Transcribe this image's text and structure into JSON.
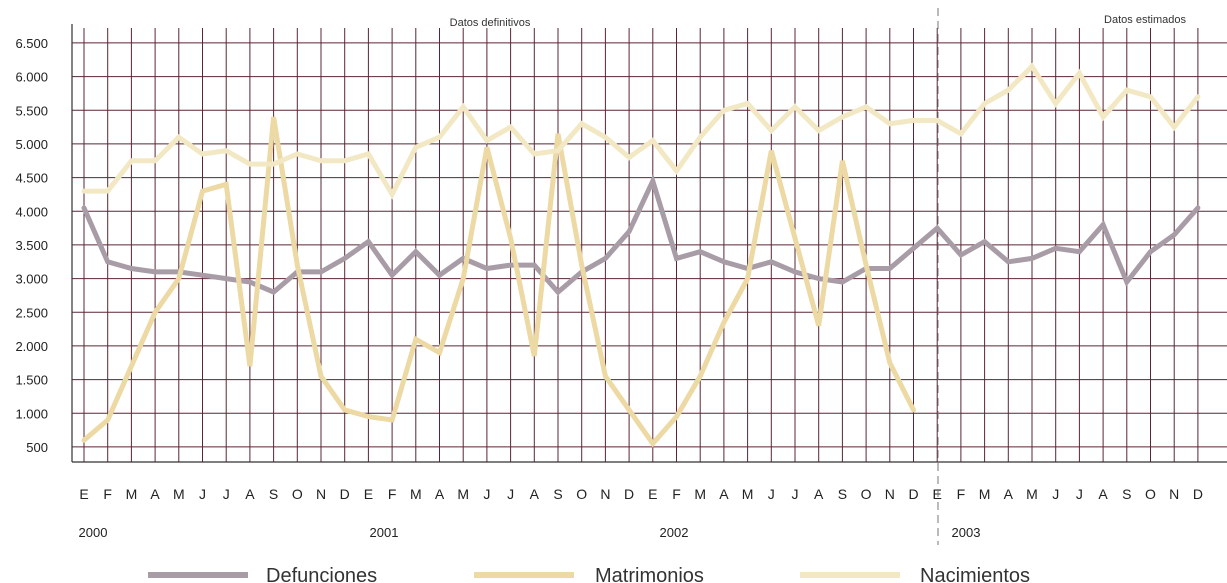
{
  "chart_data": {
    "type": "line",
    "annotations": [
      "Datos definitivos",
      "Datos estimados"
    ],
    "years": [
      "2000",
      "2001",
      "2002",
      "2003"
    ],
    "months": [
      "E",
      "F",
      "M",
      "A",
      "M",
      "J",
      "J",
      "A",
      "S",
      "O",
      "N",
      "D"
    ],
    "y_ticks": [
      "500",
      "1.000",
      "1.500",
      "2.000",
      "2.500",
      "3.000",
      "3.500",
      "4.000",
      "4.500",
      "5.000",
      "5.500",
      "6.000",
      "6.500"
    ],
    "ylim": [
      0,
      6500
    ],
    "grid": true,
    "legend_position": "bottom",
    "series": [
      {
        "name": "Defunciones",
        "color": "#a89ca6",
        "values": [
          4050,
          3250,
          3150,
          3100,
          3100,
          3050,
          3000,
          2950,
          2800,
          3100,
          3100,
          3300,
          3550,
          3050,
          3400,
          3050,
          3300,
          3150,
          3200,
          3200,
          2800,
          3100,
          3300,
          3700,
          4450,
          3300,
          3400,
          3250,
          3150,
          3250,
          3100,
          3000,
          2950,
          3150,
          3150,
          3450,
          3750,
          3350,
          3550,
          3250,
          3300,
          3450,
          3400,
          3800,
          2950,
          3400,
          3650,
          4050
        ]
      },
      {
        "name": "Matrimonios",
        "color": "#ecd9a3",
        "values": [
          600,
          900,
          1700,
          2500,
          3000,
          4300,
          4400,
          1700,
          5400,
          3200,
          1550,
          1050,
          950,
          900,
          2100,
          1900,
          3000,
          4950,
          3600,
          1850,
          5150,
          3200,
          1550,
          1050,
          550,
          950,
          1550,
          2350,
          3000,
          4900,
          3600,
          2300,
          4750,
          3200,
          1750,
          1050
        ]
      },
      {
        "name": "Nacimientos",
        "color": "#f2e8c4",
        "values": [
          4300,
          4300,
          4750,
          4750,
          5100,
          4850,
          4900,
          4700,
          4700,
          4850,
          4750,
          4750,
          4850,
          4250,
          4950,
          5100,
          5550,
          5050,
          5250,
          4850,
          4900,
          5300,
          5100,
          4800,
          5050,
          4600,
          5100,
          5500,
          5600,
          5200,
          5550,
          5200,
          5400,
          5550,
          5300,
          5350,
          5350,
          5150,
          5600,
          5800,
          6150,
          5600,
          6050,
          5400,
          5800,
          5700,
          5250,
          5700
        ]
      }
    ]
  }
}
